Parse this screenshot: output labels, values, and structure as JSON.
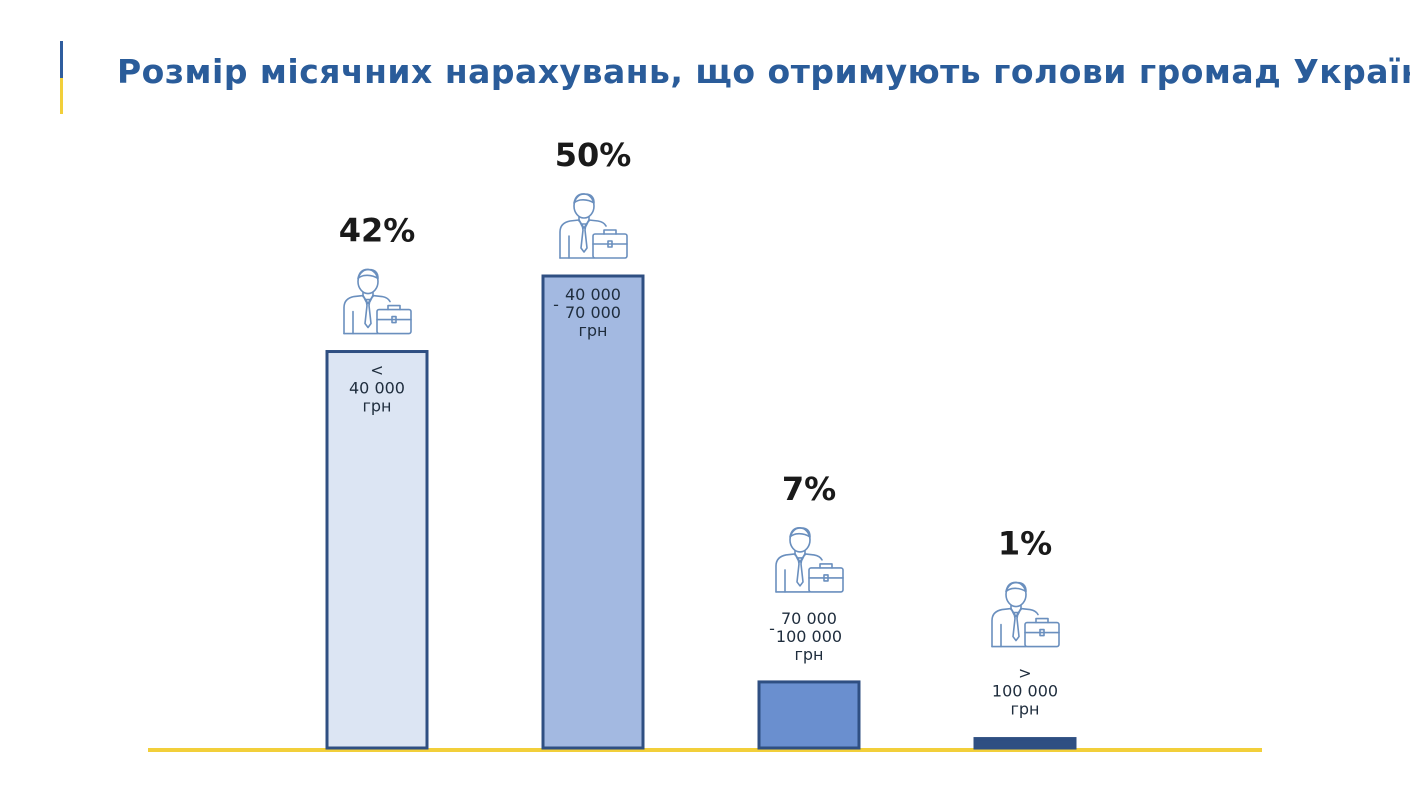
{
  "header": {
    "title": "Розмір місячних нарахувань, що отримують голови громад України"
  },
  "colors": {
    "title": "#2a5c9a",
    "bar_border": "#2f4f82",
    "baseline": "#f2cf3a",
    "icon": "#6a8fbe",
    "bar_fills": [
      "#dce5f3",
      "#a3b9e1",
      "#6a8fcf",
      "#2f4f82"
    ]
  },
  "chart_data": {
    "type": "bar",
    "title": "Розмір місячних нарахувань, що отримують голови громад України",
    "xlabel": "",
    "ylabel": "",
    "ylim": [
      0,
      50
    ],
    "grid": false,
    "categories": [
      "< 40 000 грн",
      "40 000 - 70 000 грн",
      "70 000 - 100 000 грн",
      "> 100 000 грн"
    ],
    "values": [
      42,
      50,
      7,
      1
    ],
    "value_labels": [
      "42%",
      "50%",
      "7%",
      "1%"
    ],
    "bars": [
      {
        "prefix": "<",
        "lines": [
          "<",
          "40 000",
          "грн"
        ]
      },
      {
        "prefix": "-",
        "lines": [
          "40 000",
          "70 000",
          "грн"
        ]
      },
      {
        "prefix": "-",
        "lines": [
          "70 000",
          "100 000",
          "грн"
        ]
      },
      {
        "prefix": ">",
        "lines": [
          ">",
          "100 000",
          "грн"
        ]
      }
    ],
    "icon": "businessman-with-briefcase-icon"
  }
}
